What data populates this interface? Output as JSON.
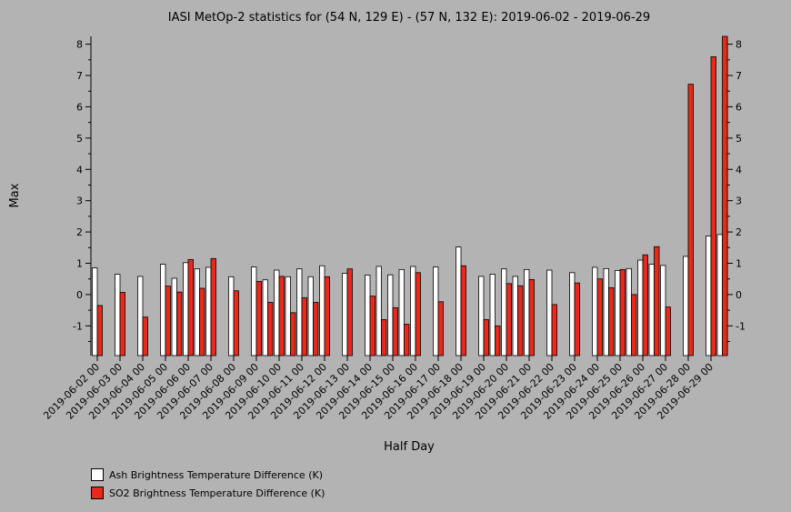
{
  "chart_data": {
    "type": "bar",
    "title": "IASI MetOp-2 statistics for (54 N, 129 E) - (57 N, 132 E): 2019-06-02 - 2019-06-29",
    "xlabel": "Half Day",
    "ylabel": "Max",
    "ylim": [
      -1.95,
      8.25
    ],
    "yticks": [
      -1,
      0,
      1,
      2,
      3,
      4,
      5,
      6,
      7,
      8
    ],
    "tick_labels": [
      "2019-06-02 00",
      "2019-06-03 00",
      "2019-06-04 00",
      "2019-06-05 00",
      "2019-06-06 00",
      "2019-06-07 00",
      "2019-06-08 00",
      "2019-06-09 00",
      "2019-06-10 00",
      "2019-06-11 00",
      "2019-06-12 00",
      "2019-06-13 00",
      "2019-06-14 00",
      "2019-06-15 00",
      "2019-06-16 00",
      "2019-06-17 00",
      "2019-06-18 00",
      "2019-06-19 00",
      "2019-06-20 00",
      "2019-06-21 00",
      "2019-06-22 00",
      "2019-06-23 00",
      "2019-06-24 00",
      "2019-06-25 00",
      "2019-06-26 00",
      "2019-06-27 00",
      "2019-06-28 00",
      "2019-06-29 00"
    ],
    "colors": {
      "ash": "#ffffff",
      "so2": "#e8291c",
      "background": "#b3b3b3"
    },
    "legend_position": "bottom-left",
    "series": [
      {
        "name": "Ash Brightness Temperature Difference (K)",
        "values": [
          0.85,
          null,
          0.65,
          null,
          0.58,
          null,
          0.97,
          0.52,
          1.02,
          0.82,
          0.87,
          null,
          0.57,
          null,
          0.88,
          0.47,
          0.78,
          0.57,
          0.82,
          0.57,
          0.92,
          null,
          0.68,
          null,
          0.62,
          0.9,
          0.63,
          0.8,
          0.9,
          null,
          0.88,
          null,
          1.52,
          null,
          0.58,
          0.65,
          0.82,
          0.58,
          0.8,
          null,
          0.78,
          null,
          0.7,
          null,
          0.87,
          0.83,
          0.77,
          0.83,
          1.1,
          0.97,
          0.93,
          null,
          1.22,
          null,
          1.87,
          1.92
        ]
      },
      {
        "name": "SO2 Brightness Temperature Difference (K)",
        "values": [
          -0.35,
          null,
          0.07,
          null,
          -0.72,
          null,
          0.27,
          0.08,
          1.12,
          0.2,
          1.15,
          null,
          0.12,
          null,
          0.42,
          -0.25,
          0.58,
          -0.58,
          -0.1,
          -0.25,
          0.57,
          null,
          0.82,
          null,
          -0.05,
          -0.8,
          -0.42,
          -0.95,
          0.7,
          null,
          -0.23,
          null,
          0.92,
          null,
          -0.8,
          -1.0,
          0.35,
          0.28,
          0.48,
          null,
          -0.32,
          null,
          0.37,
          null,
          0.5,
          0.22,
          0.8,
          0.0,
          1.27,
          1.53,
          -0.4,
          null,
          6.72,
          null,
          7.6,
          8.25
        ]
      }
    ]
  }
}
